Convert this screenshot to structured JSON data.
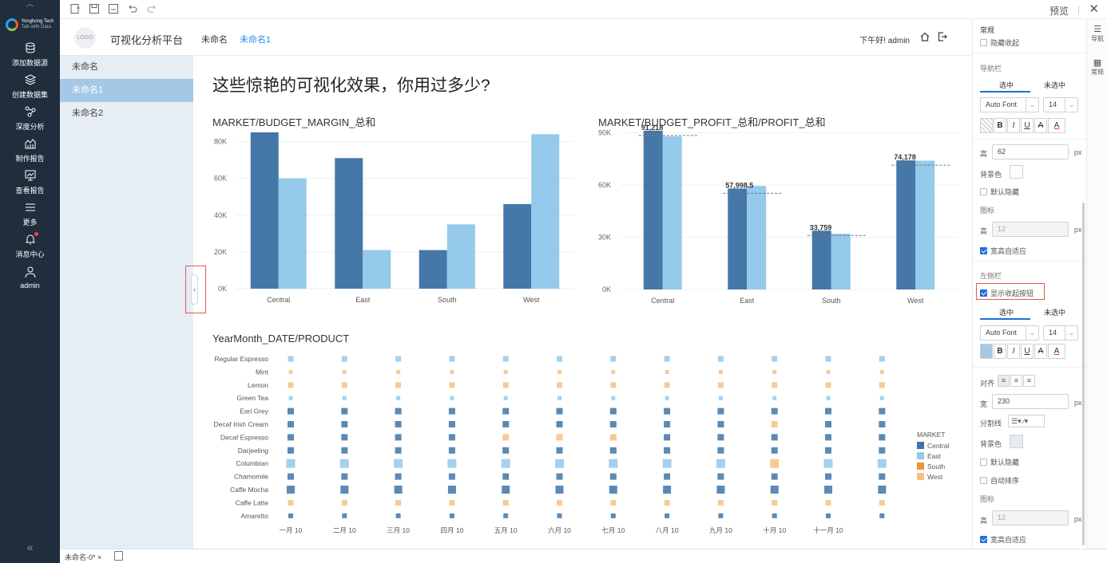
{
  "toolbar": {
    "preview": "预览",
    "sep": "|"
  },
  "appbar": {
    "logo_line1": "Yonghong Tech",
    "logo_line2": "Talk with Data",
    "items": [
      {
        "label": "添加数据源",
        "icon": "database-icon"
      },
      {
        "label": "创建数据集",
        "icon": "layers-icon"
      },
      {
        "label": "深度分析",
        "icon": "analysis-icon"
      },
      {
        "label": "制作报告",
        "icon": "report-icon"
      },
      {
        "label": "查看报告",
        "icon": "monitor-icon"
      },
      {
        "label": "更多",
        "icon": "menu-icon"
      },
      {
        "label": "消息中心",
        "icon": "bell-icon"
      },
      {
        "label": "admin",
        "icon": "user-icon"
      }
    ],
    "collapse": "«"
  },
  "header": {
    "logo": "LOGO",
    "title": "可视化分析平台",
    "tabs": [
      {
        "label": "未命名",
        "active": false
      },
      {
        "label": "未命名1",
        "active": true
      }
    ],
    "greeting": "下午好! admin"
  },
  "leftnav": {
    "items": [
      {
        "label": "未命名",
        "active": false
      },
      {
        "label": "未命名1",
        "active": true
      },
      {
        "label": "未命名2",
        "active": false
      }
    ]
  },
  "collapse_button": "‹",
  "content": {
    "title": "这些惊艳的可视化效果，你用过多少?"
  },
  "colors": {
    "central": "#3f74a8",
    "east": "#93c9ea",
    "south": "#f0923a",
    "west": "#f7c07e"
  },
  "chart_data": [
    {
      "type": "bar",
      "title": "MARKET/BUDGET_MARGIN_总和",
      "categories": [
        "Central",
        "East",
        "South",
        "West"
      ],
      "yticks": [
        "0K",
        "20K",
        "40K",
        "60K",
        "80K"
      ],
      "ylim": [
        0,
        85000
      ],
      "series": [
        {
          "values": [
            85000,
            71000,
            21000,
            46000
          ]
        },
        {
          "values": [
            60000,
            21000,
            35000,
            84000
          ]
        }
      ]
    },
    {
      "type": "bar",
      "title": "MARKET/BUDGET_PROFIT_总和/PROFIT_总和",
      "categories": [
        "Central",
        "East",
        "South",
        "West"
      ],
      "yticks": [
        "0K",
        "30K",
        "60K",
        "90K"
      ],
      "ylim": [
        0,
        93000
      ],
      "series": [
        {
          "values": [
            91218,
            57998.5,
            33759,
            74178
          ]
        },
        {
          "values": [
            88000,
            59500,
            32000,
            74000
          ]
        }
      ],
      "labels": [
        "91,218",
        "57,998.5",
        "33,759",
        "74,178"
      ]
    },
    {
      "type": "heatmap",
      "title": "YearMonth_DATE/PRODUCT",
      "rows": [
        "Regular Espresso",
        "Mint",
        "Lemon",
        "Green Tea",
        "Earl Grey",
        "Decaf Irish Cream",
        "Decaf Espresso",
        "Darjeeling",
        "Columbian",
        "Chamomile",
        "Caffe Mocha",
        "Caffe Latte",
        "Amaretto"
      ],
      "columns": [
        "一月 10",
        "二月 10",
        "三月 10",
        "四月 10",
        "五月 10",
        "六月 10",
        "七月 10",
        "八月 10",
        "九月 10",
        "十月 10",
        "十一月 10",
        ""
      ],
      "row_market": [
        "East",
        "West",
        "West",
        "East",
        "Central",
        "Central",
        "Central",
        "Central",
        "East",
        "Central",
        "Central",
        "West",
        "Central"
      ],
      "row_size": [
        7,
        5,
        7,
        5,
        8,
        8,
        8,
        8,
        11,
        8,
        10,
        7,
        6
      ],
      "legend_title": "MARKET",
      "legend": [
        "Central",
        "East",
        "South",
        "West"
      ]
    }
  ],
  "props": {
    "section1": "常规",
    "hide_collapse": "隐藏收起",
    "navbar": "导航栏",
    "tab_selected": "选中",
    "tab_unselected": "未选中",
    "font": "Auto Font",
    "font_size": "14",
    "height_label": "高",
    "height_value": "62",
    "px": "px",
    "bg_label": "背景色",
    "default_hide": "默认隐藏",
    "icon_label": "图标",
    "icon_height": "12",
    "auto_fit": "宽高自适应",
    "leftbar": "左侧栏",
    "show_collapse": "显示收起按钮",
    "align_label": "对齐",
    "width_label": "宽",
    "width_value": "230",
    "divider_label": "分割线",
    "auto_sort": "自动排序",
    "fmt": [
      "B",
      "I",
      "U",
      "A",
      "A"
    ]
  },
  "sidetabs": {
    "nav": "导航",
    "general": "常规"
  },
  "status": {
    "tab": "未命名-0* ×"
  }
}
